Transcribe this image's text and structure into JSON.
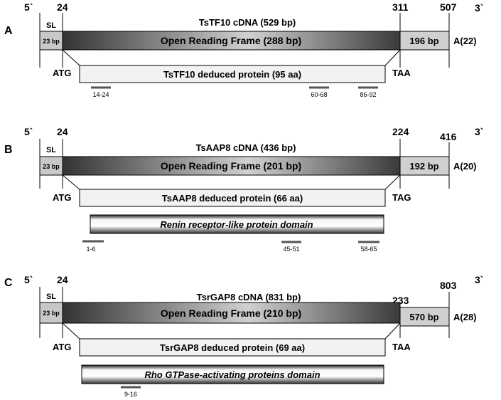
{
  "panels": [
    {
      "letter": "A",
      "prime5": "5`",
      "prime3": "3`",
      "pos_orf_start": "24",
      "pos_orf_end": "311",
      "pos_total": "507",
      "title": "TsTF10 cDNA (529 bp)",
      "sl": "SL",
      "utr5": "23 bp",
      "orf": "Open Reading Frame (288 bp)",
      "utr3": "196 bp",
      "polya": "A(22)",
      "start_codon": "ATG",
      "stop_codon": "TAA",
      "protein": "TsTF10 deduced protein (95 aa)",
      "domain": "",
      "markers": [
        "14-24",
        "60-68",
        "86-92"
      ]
    },
    {
      "letter": "B",
      "prime5": "5`",
      "prime3": "3`",
      "pos_orf_start": "24",
      "pos_orf_end": "224",
      "pos_total": "416",
      "title": "TsAAP8 cDNA (436 bp)",
      "sl": "SL",
      "utr5": "23 bp",
      "orf": "Open Reading Frame (201 bp)",
      "utr3": "192 bp",
      "polya": "A(20)",
      "start_codon": "ATG",
      "stop_codon": "TAG",
      "protein": "TsAAP8 deduced protein (66 aa)",
      "domain": "Renin receptor-like  protein domain",
      "markers": [
        "1-6",
        "45-51",
        "58-65"
      ]
    },
    {
      "letter": "C",
      "prime5": "5`",
      "prime3": "3`",
      "pos_orf_start": "24",
      "pos_orf_end": "233",
      "pos_total": "803",
      "title": "TsrGAP8 cDNA (831 bp)",
      "sl": "SL",
      "utr5": "23 bp",
      "orf": "Open Reading Frame (210 bp)",
      "utr3": "570 bp",
      "polya": "A(28)",
      "start_codon": "ATG",
      "stop_codon": "TAA",
      "protein": "TsrGAP8 deduced protein (69 aa)",
      "domain": "Rho GTPase-activating  proteins domain",
      "markers": [
        "9-16"
      ]
    }
  ],
  "colors": {
    "orf_dark": "#333333",
    "orf_light": "#d9d9d9",
    "utr": "#c8c8c8",
    "protein_box": "#f2f2f2",
    "marker": "#555555"
  }
}
